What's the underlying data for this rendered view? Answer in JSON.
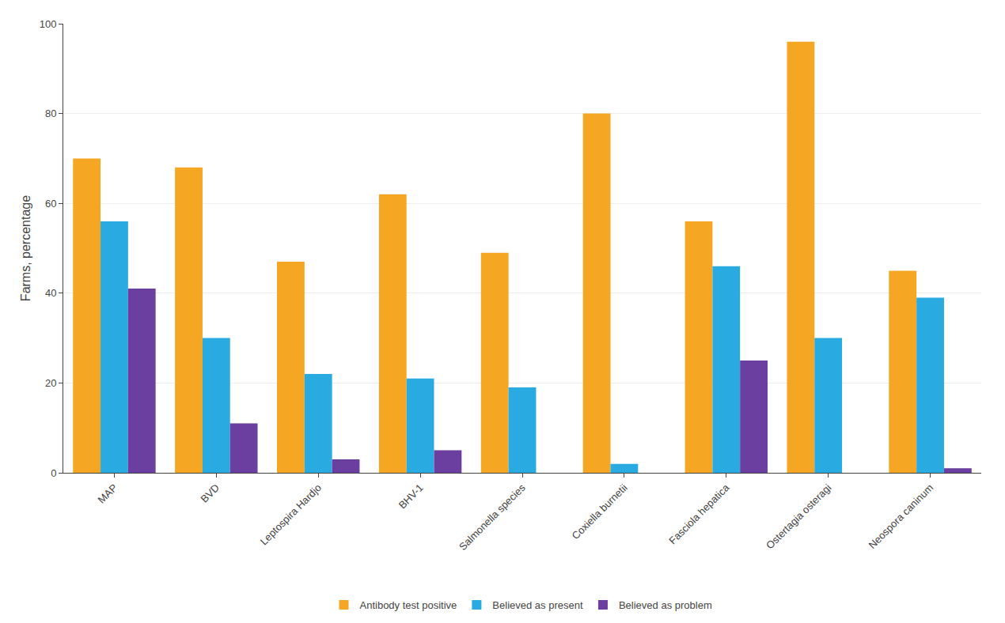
{
  "chart_data": {
    "type": "bar",
    "categories": [
      "MAP",
      "BVD",
      "Leptospira Hardjo",
      "BHV-1",
      "Salmonella species",
      "Coxiella burnetii",
      "Fasciola hepatica",
      "Ostertagia osteragi",
      "Neospora caninum"
    ],
    "series": [
      {
        "name": "Antibody test positive",
        "color": "#F5A623",
        "values": [
          70,
          68,
          47,
          62,
          49,
          80,
          56,
          96,
          45
        ]
      },
      {
        "name": "Believed as present",
        "color": "#29ABE2",
        "values": [
          56,
          30,
          22,
          21,
          19,
          2,
          46,
          30,
          39
        ]
      },
      {
        "name": "Believed as problem",
        "color": "#6B3FA0",
        "values": [
          41,
          11,
          3,
          5,
          0,
          0,
          25,
          0,
          1
        ]
      }
    ],
    "ylabel": "Farms, percentage",
    "ylim": [
      0,
      100
    ],
    "yticks": [
      0,
      20,
      40,
      60,
      80,
      100
    ],
    "grid": true,
    "legend": "bottom"
  }
}
